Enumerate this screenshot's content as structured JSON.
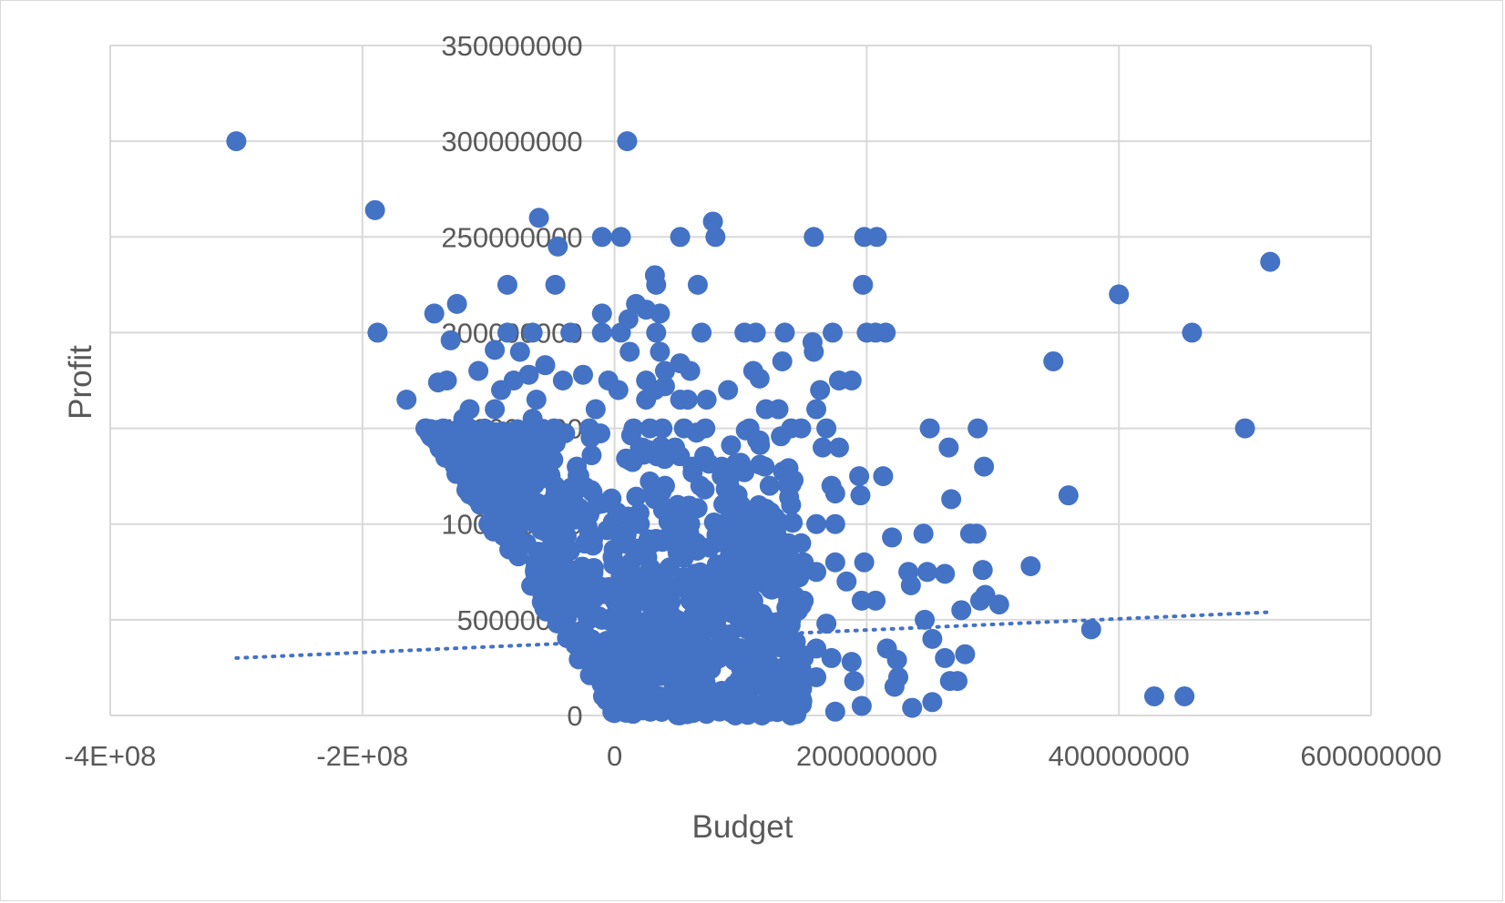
{
  "chart_data": {
    "type": "scatter",
    "xlabel": "Budget",
    "ylabel": "Profit",
    "xlim": [
      -400000000,
      600000000
    ],
    "ylim": [
      0,
      350000000
    ],
    "x_ticks": [
      -400000000,
      -200000000,
      0,
      200000000,
      400000000,
      600000000
    ],
    "x_tick_labels": [
      "-4E+08",
      "-2E+08",
      "0",
      "200000000",
      "400000000",
      "600000000"
    ],
    "y_ticks": [
      0,
      50000000,
      100000000,
      150000000,
      200000000,
      250000000,
      300000000,
      350000000
    ],
    "y_tick_labels": [
      "0",
      "50000000",
      "100000000",
      "150000000",
      "200000000",
      "250000000",
      "300000000",
      "350000000"
    ],
    "grid": true,
    "legend": "none",
    "marker_color": "#4472C4",
    "trendline": {
      "type": "linear",
      "style": "dotted",
      "x": [
        -300000000,
        520000000
      ],
      "y": [
        30000000,
        54000000
      ]
    },
    "series": [
      {
        "points": [
          [
            -300000000,
            300000000
          ],
          [
            10000000,
            300000000
          ],
          [
            -190000000,
            264000000
          ],
          [
            -60000000,
            260000000
          ],
          [
            -10000000,
            250000000
          ],
          [
            5000000,
            250000000
          ],
          [
            52000000,
            250000000
          ],
          [
            78000000,
            258000000
          ],
          [
            80000000,
            250000000
          ],
          [
            158000000,
            250000000
          ],
          [
            198000000,
            250000000
          ],
          [
            208000000,
            250000000
          ],
          [
            -45000000,
            245000000
          ],
          [
            520000000,
            237000000
          ],
          [
            32000000,
            230000000
          ],
          [
            -85000000,
            225000000
          ],
          [
            -47000000,
            225000000
          ],
          [
            33000000,
            225000000
          ],
          [
            66000000,
            225000000
          ],
          [
            197000000,
            225000000
          ],
          [
            400000000,
            220000000
          ],
          [
            -125000000,
            215000000
          ],
          [
            17000000,
            215000000
          ],
          [
            -143000000,
            210000000
          ],
          [
            -10000000,
            210000000
          ],
          [
            11000000,
            207000000
          ],
          [
            25000000,
            212000000
          ],
          [
            36000000,
            210000000
          ],
          [
            -130000000,
            196000000
          ],
          [
            -188000000,
            200000000
          ],
          [
            -85000000,
            200000000
          ],
          [
            -65000000,
            200000000
          ],
          [
            -35000000,
            200000000
          ],
          [
            -10000000,
            200000000
          ],
          [
            5000000,
            200000000
          ],
          [
            33000000,
            200000000
          ],
          [
            69000000,
            200000000
          ],
          [
            103000000,
            200000000
          ],
          [
            112000000,
            200000000
          ],
          [
            135000000,
            200000000
          ],
          [
            173000000,
            200000000
          ],
          [
            200000000,
            200000000
          ],
          [
            207000000,
            200000000
          ],
          [
            215000000,
            200000000
          ],
          [
            458000000,
            200000000
          ],
          [
            -95000000,
            191000000
          ],
          [
            -75000000,
            190000000
          ],
          [
            12000000,
            190000000
          ],
          [
            36000000,
            190000000
          ],
          [
            157000000,
            195000000
          ],
          [
            158000000,
            190000000
          ],
          [
            -55000000,
            183000000
          ],
          [
            -108000000,
            180000000
          ],
          [
            -80000000,
            175000000
          ],
          [
            -68000000,
            178000000
          ],
          [
            -5000000,
            175000000
          ],
          [
            -25000000,
            178000000
          ],
          [
            -41000000,
            175000000
          ],
          [
            40000000,
            180000000
          ],
          [
            52000000,
            184000000
          ],
          [
            60000000,
            180000000
          ],
          [
            110000000,
            180000000
          ],
          [
            115000000,
            176000000
          ],
          [
            133000000,
            185000000
          ],
          [
            348000000,
            185000000
          ],
          [
            -133000000,
            175000000
          ],
          [
            -140000000,
            174000000
          ],
          [
            -90000000,
            170000000
          ],
          [
            3000000,
            170000000
          ],
          [
            25000000,
            175000000
          ],
          [
            32000000,
            170000000
          ],
          [
            40000000,
            172000000
          ],
          [
            90000000,
            170000000
          ],
          [
            163000000,
            170000000
          ],
          [
            178000000,
            175000000
          ],
          [
            188000000,
            175000000
          ],
          [
            -165000000,
            165000000
          ],
          [
            -62000000,
            165000000
          ],
          [
            25000000,
            165000000
          ],
          [
            52000000,
            165000000
          ],
          [
            58000000,
            165000000
          ],
          [
            73000000,
            165000000
          ],
          [
            -115000000,
            160000000
          ],
          [
            -95000000,
            160000000
          ],
          [
            -15000000,
            160000000
          ],
          [
            120000000,
            160000000
          ],
          [
            130000000,
            160000000
          ],
          [
            160000000,
            160000000
          ],
          [
            -120000000,
            155000000
          ],
          [
            -65000000,
            155000000
          ],
          [
            -48000000,
            150000000
          ],
          [
            -20000000,
            150000000
          ],
          [
            15000000,
            150000000
          ],
          [
            28000000,
            150000000
          ],
          [
            38000000,
            150000000
          ],
          [
            55000000,
            150000000
          ],
          [
            72000000,
            150000000
          ],
          [
            107000000,
            150000000
          ],
          [
            140000000,
            150000000
          ],
          [
            148000000,
            150000000
          ],
          [
            168000000,
            150000000
          ],
          [
            250000000,
            150000000
          ],
          [
            288000000,
            150000000
          ],
          [
            500000000,
            150000000
          ],
          [
            -110000000,
            140000000
          ],
          [
            -80000000,
            140000000
          ],
          [
            22000000,
            140000000
          ],
          [
            48000000,
            140000000
          ],
          [
            165000000,
            140000000
          ],
          [
            178000000,
            140000000
          ],
          [
            265000000,
            140000000
          ],
          [
            -100000000,
            130000000
          ],
          [
            -55000000,
            130000000
          ],
          [
            -30000000,
            130000000
          ],
          [
            62000000,
            130000000
          ],
          [
            85000000,
            130000000
          ],
          [
            100000000,
            132000000
          ],
          [
            119000000,
            130000000
          ],
          [
            293000000,
            130000000
          ],
          [
            -90000000,
            125000000
          ],
          [
            85000000,
            125000000
          ],
          [
            92000000,
            125000000
          ],
          [
            138000000,
            123000000
          ],
          [
            194000000,
            125000000
          ],
          [
            213000000,
            125000000
          ],
          [
            -70000000,
            120000000
          ],
          [
            -30000000,
            118000000
          ],
          [
            40000000,
            120000000
          ],
          [
            68000000,
            120000000
          ],
          [
            123000000,
            120000000
          ],
          [
            172000000,
            120000000
          ],
          [
            175000000,
            116000000
          ],
          [
            195000000,
            115000000
          ],
          [
            267000000,
            113000000
          ],
          [
            360000000,
            115000000
          ],
          [
            -80000000,
            110000000
          ],
          [
            -50000000,
            110000000
          ],
          [
            -20000000,
            105000000
          ],
          [
            50000000,
            110000000
          ],
          [
            100000000,
            110000000
          ],
          [
            120000000,
            108000000
          ],
          [
            140000000,
            110000000
          ],
          [
            -100000000,
            100000000
          ],
          [
            -60000000,
            100000000
          ],
          [
            -20000000,
            95000000
          ],
          [
            20000000,
            100000000
          ],
          [
            60000000,
            100000000
          ],
          [
            80000000,
            100000000
          ],
          [
            110000000,
            100000000
          ],
          [
            160000000,
            100000000
          ],
          [
            175000000,
            100000000
          ],
          [
            -70000000,
            90000000
          ],
          [
            -40000000,
            85000000
          ],
          [
            30000000,
            90000000
          ],
          [
            90000000,
            92000000
          ],
          [
            138000000,
            90000000
          ],
          [
            148000000,
            90000000
          ],
          [
            220000000,
            93000000
          ],
          [
            245000000,
            95000000
          ],
          [
            282000000,
            95000000
          ],
          [
            287000000,
            95000000
          ],
          [
            -50000000,
            80000000
          ],
          [
            0,
            80000000
          ],
          [
            50000000,
            85000000
          ],
          [
            100000000,
            80000000
          ],
          [
            150000000,
            80000000
          ],
          [
            175000000,
            80000000
          ],
          [
            198000000,
            80000000
          ],
          [
            -30000000,
            70000000
          ],
          [
            30000000,
            70000000
          ],
          [
            80000000,
            70000000
          ],
          [
            130000000,
            75000000
          ],
          [
            160000000,
            75000000
          ],
          [
            184000000,
            70000000
          ],
          [
            233000000,
            75000000
          ],
          [
            235000000,
            68000000
          ],
          [
            248000000,
            75000000
          ],
          [
            262000000,
            74000000
          ],
          [
            292000000,
            76000000
          ],
          [
            330000000,
            78000000
          ],
          [
            -20000000,
            60000000
          ],
          [
            20000000,
            60000000
          ],
          [
            60000000,
            60000000
          ],
          [
            110000000,
            60000000
          ],
          [
            150000000,
            60000000
          ],
          [
            196000000,
            60000000
          ],
          [
            207000000,
            60000000
          ],
          [
            290000000,
            60000000
          ],
          [
            294000000,
            63000000
          ],
          [
            305000000,
            58000000
          ],
          [
            -10000000,
            50000000
          ],
          [
            30000000,
            50000000
          ],
          [
            70000000,
            50000000
          ],
          [
            120000000,
            50000000
          ],
          [
            140000000,
            50000000
          ],
          [
            168000000,
            48000000
          ],
          [
            246000000,
            50000000
          ],
          [
            275000000,
            55000000
          ],
          [
            378000000,
            45000000
          ],
          [
            0,
            40000000
          ],
          [
            40000000,
            40000000
          ],
          [
            90000000,
            40000000
          ],
          [
            130000000,
            40000000
          ],
          [
            160000000,
            35000000
          ],
          [
            216000000,
            35000000
          ],
          [
            252000000,
            40000000
          ],
          [
            10000000,
            30000000
          ],
          [
            50000000,
            30000000
          ],
          [
            100000000,
            25000000
          ],
          [
            150000000,
            30000000
          ],
          [
            172000000,
            30000000
          ],
          [
            188000000,
            28000000
          ],
          [
            224000000,
            29000000
          ],
          [
            262000000,
            30000000
          ],
          [
            278000000,
            32000000
          ],
          [
            20000000,
            20000000
          ],
          [
            70000000,
            18000000
          ],
          [
            120000000,
            15000000
          ],
          [
            160000000,
            20000000
          ],
          [
            190000000,
            18000000
          ],
          [
            222000000,
            15000000
          ],
          [
            225000000,
            20000000
          ],
          [
            266000000,
            18000000
          ],
          [
            272000000,
            18000000
          ],
          [
            428000000,
            10000000
          ],
          [
            452000000,
            10000000
          ],
          [
            30000000,
            10000000
          ],
          [
            80000000,
            5000000
          ],
          [
            140000000,
            5000000
          ],
          [
            175000000,
            2000000
          ],
          [
            196000000,
            5000000
          ],
          [
            236000000,
            4000000
          ],
          [
            252000000,
            7000000
          ],
          [
            10000000,
            5000000
          ],
          [
            140000000,
            0
          ]
        ]
      }
    ]
  }
}
